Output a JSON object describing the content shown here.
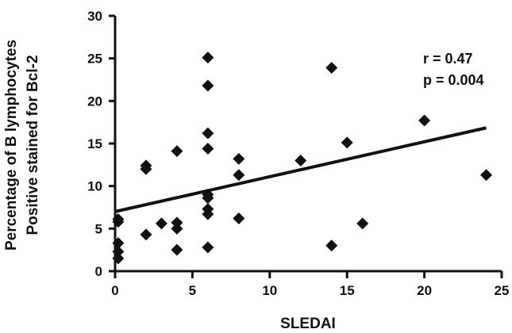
{
  "chart_data": {
    "type": "scatter",
    "xlabel": "SLEDAI",
    "ylabel_lines": [
      "Percentage of B lymphocytes",
      "Positive stained for Bcl-2"
    ],
    "xlim": [
      0,
      25
    ],
    "ylim": [
      0,
      30
    ],
    "x_ticks": [
      "0",
      "5",
      "10",
      "15",
      "20",
      "25"
    ],
    "y_ticks": [
      "0",
      "5",
      "10",
      "15",
      "20",
      "25",
      "30"
    ],
    "grid": false,
    "legend": "none",
    "marker": "diamond",
    "color": "#111111",
    "annotations": [
      "r = 0.47",
      "p = 0.004"
    ],
    "points": [
      {
        "x": 0.2,
        "y": 1.5
      },
      {
        "x": 0.2,
        "y": 2.3
      },
      {
        "x": 0.2,
        "y": 3.3
      },
      {
        "x": 0.2,
        "y": 5.8
      },
      {
        "x": 0.2,
        "y": 6.1
      },
      {
        "x": 2,
        "y": 4.3
      },
      {
        "x": 2,
        "y": 12.0
      },
      {
        "x": 2,
        "y": 12.4
      },
      {
        "x": 3,
        "y": 5.6
      },
      {
        "x": 4,
        "y": 2.5
      },
      {
        "x": 4,
        "y": 5.0
      },
      {
        "x": 4,
        "y": 5.7
      },
      {
        "x": 4,
        "y": 14.1
      },
      {
        "x": 6,
        "y": 2.8
      },
      {
        "x": 6,
        "y": 6.7
      },
      {
        "x": 6,
        "y": 7.3
      },
      {
        "x": 6,
        "y": 8.6
      },
      {
        "x": 6,
        "y": 9.0
      },
      {
        "x": 6,
        "y": 14.4
      },
      {
        "x": 6,
        "y": 16.2
      },
      {
        "x": 6,
        "y": 21.8
      },
      {
        "x": 6,
        "y": 25.1
      },
      {
        "x": 8,
        "y": 6.2
      },
      {
        "x": 8,
        "y": 11.3
      },
      {
        "x": 8,
        "y": 13.2
      },
      {
        "x": 12,
        "y": 13.0
      },
      {
        "x": 14,
        "y": 3.0
      },
      {
        "x": 14,
        "y": 23.9
      },
      {
        "x": 15,
        "y": 15.1
      },
      {
        "x": 16,
        "y": 5.6
      },
      {
        "x": 20,
        "y": 17.7
      },
      {
        "x": 24,
        "y": 11.3
      }
    ],
    "regression": {
      "intercept": 7.0,
      "slope": 0.41,
      "x_range": [
        0,
        24
      ]
    }
  }
}
